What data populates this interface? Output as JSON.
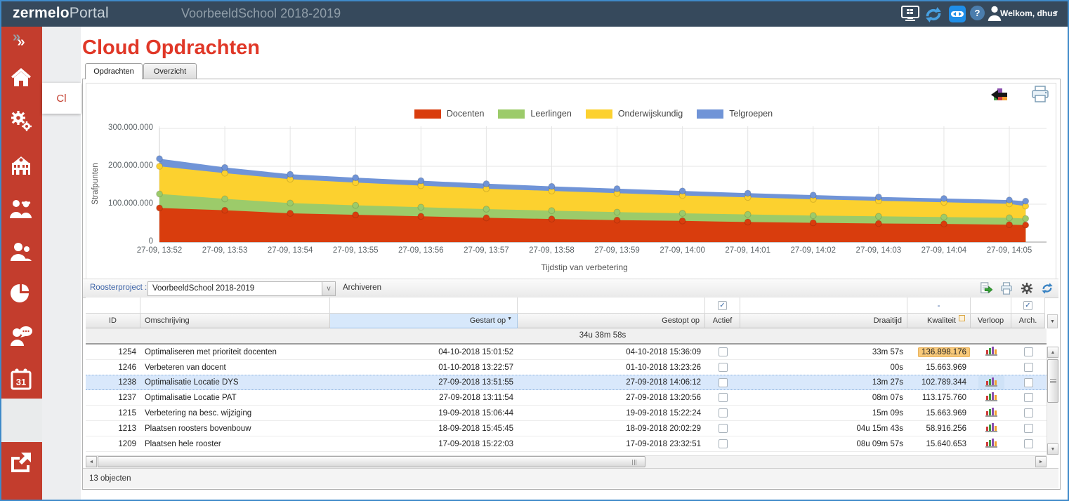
{
  "window": {
    "brand_bold": "zermelo",
    "brand_light": "Portal",
    "school": "VoorbeeldSchool 2018-2019",
    "welcome": "Welkom, dhus",
    "topbar_icons": [
      "remote-desktop-icon",
      "sync-icon",
      "teamviewer-icon",
      "help-icon",
      "avatar-icon"
    ]
  },
  "glyphs": {
    "chevron_double": "»",
    "caret_small": "▾",
    "caret_down": "▼",
    "caret_up": "▲",
    "caret_left": "◄",
    "caret_right": "►",
    "select_arrow": "v",
    "question": "?",
    "filter_dash": "-"
  },
  "sidebar": {
    "items": [
      "expand",
      "home",
      "settings",
      "school",
      "parents",
      "users",
      "analytics",
      "support",
      "calendar"
    ],
    "bottom_item": "logout",
    "secondary_tab": "Cl"
  },
  "page": {
    "title": "Cloud Opdrachten",
    "tabs": [
      {
        "label": "Opdrachten",
        "active": true
      },
      {
        "label": "Overzicht",
        "active": false
      }
    ]
  },
  "chart_data": {
    "type": "area",
    "stacked": true,
    "xlabel": "Tijdstip van verbetering",
    "ylabel": "Strafpunten",
    "legend_position": "top",
    "grid": true,
    "ylim": [
      0,
      300000000
    ],
    "y_tick_labels": [
      "0",
      "100.000.000",
      "200.000.000",
      "300.000.000"
    ],
    "x_tick_labels": [
      "27-09, 13:52",
      "27-09, 13:53",
      "27-09, 13:54",
      "27-09, 13:55",
      "27-09, 13:56",
      "27-09, 13:57",
      "27-09, 13:58",
      "27-09, 13:59",
      "27-09, 14:00",
      "27-09, 14:01",
      "27-09, 14:02",
      "27-09, 14:03",
      "27-09, 14:04",
      "27-09, 14:05"
    ],
    "x_minutes": [
      0,
      1,
      2,
      3,
      4,
      5,
      6,
      7,
      8,
      9,
      10,
      11,
      12,
      13,
      13.25
    ],
    "series": [
      {
        "name": "Docenten",
        "color": "#d93d0d",
        "values_millions": [
          90,
          84,
          76,
          72,
          68,
          64,
          61,
          58,
          56,
          53,
          51,
          49,
          48,
          46,
          45
        ]
      },
      {
        "name": "Leerlingen",
        "color": "#9ccb6a",
        "values_millions": [
          37,
          30,
          27,
          25,
          24,
          23,
          22,
          21,
          20,
          20,
          19,
          19,
          18,
          18,
          17
        ]
      },
      {
        "name": "Onderwijskundig",
        "color": "#fcd12f",
        "values_millions": [
          73,
          68,
          63,
          60,
          57,
          54,
          52,
          50,
          47,
          45,
          43,
          41,
          39,
          37,
          33
        ]
      },
      {
        "name": "Telgroepen",
        "color": "#7094d7",
        "values_millions": [
          20,
          15,
          13,
          13,
          13,
          13,
          12,
          12,
          12,
          11,
          11,
          10,
          10,
          10,
          13
        ]
      }
    ]
  },
  "toolbar": {
    "project_label": "Roosterproject :",
    "project_value": "VoorbeeldSchool 2018-2019",
    "archive_label": "Archiveren",
    "icons": [
      "export-icon",
      "print-icon",
      "settings-icon",
      "refresh-icon"
    ]
  },
  "chart_tools": [
    "chart-export-icon",
    "print-chart-icon"
  ],
  "table": {
    "columns": [
      {
        "key": "id",
        "label": "ID"
      },
      {
        "key": "omschrijving",
        "label": "Omschrijving"
      },
      {
        "key": "gestart",
        "label": "Gestart op",
        "sorted": "desc"
      },
      {
        "key": "gestopt",
        "label": "Gestopt op"
      },
      {
        "key": "actief",
        "label": "Actief",
        "filter": "checkbox"
      },
      {
        "key": "draaitijd",
        "label": "Draaitijd"
      },
      {
        "key": "kwaliteit",
        "label": "Kwaliteit",
        "filter": "-"
      },
      {
        "key": "verloop",
        "label": "Verloop"
      },
      {
        "key": "arch",
        "label": "Arch.",
        "filter": "checkbox"
      }
    ],
    "group_row_total": "34u 38m 58s",
    "rows": [
      {
        "id": "1254",
        "omschrijving": "Optimaliseren met prioriteit docenten",
        "gestart": "04-10-2018 15:01:52",
        "gestopt": "04-10-2018 15:36:09",
        "actief": false,
        "draaitijd": "33m 57s",
        "kwaliteit": "136.898.176",
        "kwaliteit_highlight": true,
        "verloop_icon": true,
        "arch": false,
        "selected": false
      },
      {
        "id": "1246",
        "omschrijving": "Verbeteren van docent",
        "gestart": "01-10-2018 13:22:57",
        "gestopt": "01-10-2018 13:23:26",
        "actief": false,
        "draaitijd": "00s",
        "kwaliteit": "15.663.969",
        "kwaliteit_highlight": false,
        "verloop_icon": false,
        "arch": false,
        "selected": false
      },
      {
        "id": "1238",
        "omschrijving": "Optimalisatie Locatie DYS",
        "gestart": "27-09-2018 13:51:55",
        "gestopt": "27-09-2018 14:06:12",
        "actief": false,
        "draaitijd": "13m 27s",
        "kwaliteit": "102.789.344",
        "kwaliteit_highlight": false,
        "verloop_icon": true,
        "arch": false,
        "selected": true
      },
      {
        "id": "1237",
        "omschrijving": "Optimalisatie Locatie PAT",
        "gestart": "27-09-2018 13:11:54",
        "gestopt": "27-09-2018 13:20:56",
        "actief": false,
        "draaitijd": "08m 07s",
        "kwaliteit": "113.175.760",
        "kwaliteit_highlight": false,
        "verloop_icon": true,
        "arch": false,
        "selected": false
      },
      {
        "id": "1215",
        "omschrijving": "Verbetering na besc. wijziging",
        "gestart": "19-09-2018 15:06:44",
        "gestopt": "19-09-2018 15:22:24",
        "actief": false,
        "draaitijd": "15m 09s",
        "kwaliteit": "15.663.969",
        "kwaliteit_highlight": false,
        "verloop_icon": true,
        "arch": false,
        "selected": false
      },
      {
        "id": "1213",
        "omschrijving": "Plaatsen roosters bovenbouw",
        "gestart": "18-09-2018 15:45:45",
        "gestopt": "18-09-2018 20:02:29",
        "actief": false,
        "draaitijd": "04u 15m 43s",
        "kwaliteit": "58.916.256",
        "kwaliteit_highlight": false,
        "verloop_icon": true,
        "arch": false,
        "selected": false
      },
      {
        "id": "1209",
        "omschrijving": "Plaatsen hele rooster",
        "gestart": "17-09-2018 15:22:03",
        "gestopt": "17-09-2018 23:32:51",
        "actief": false,
        "draaitijd": "08u 09m 57s",
        "kwaliteit": "15.640.653",
        "kwaliteit_highlight": false,
        "verloop_icon": true,
        "arch": false,
        "selected": false
      }
    ],
    "status": "13 objecten"
  }
}
